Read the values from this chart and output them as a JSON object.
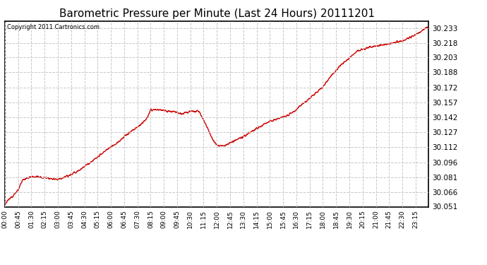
{
  "title": "Barometric Pressure per Minute (Last 24 Hours) 20111201",
  "copyright": "Copyright 2011 Cartronics.com",
  "line_color": "#cc0000",
  "background_color": "#ffffff",
  "grid_color": "#c8c8c8",
  "title_fontsize": 11,
  "ylabel_values": [
    30.051,
    30.066,
    30.081,
    30.096,
    30.112,
    30.127,
    30.142,
    30.157,
    30.172,
    30.188,
    30.203,
    30.218,
    30.233
  ],
  "ylim": [
    30.051,
    30.24
  ],
  "x_tick_labels": [
    "00:00",
    "00:45",
    "01:30",
    "02:15",
    "03:00",
    "03:45",
    "04:30",
    "05:15",
    "06:00",
    "06:45",
    "07:30",
    "08:15",
    "09:00",
    "09:45",
    "10:30",
    "11:15",
    "12:00",
    "12:45",
    "13:30",
    "14:15",
    "15:00",
    "15:45",
    "16:30",
    "17:15",
    "18:00",
    "18:45",
    "19:30",
    "20:15",
    "21:00",
    "21:45",
    "22:30",
    "23:15"
  ],
  "line_width": 1.0,
  "ctrl_x": [
    0,
    45,
    60,
    90,
    120,
    150,
    180,
    210,
    240,
    270,
    300,
    330,
    360,
    390,
    420,
    450,
    480,
    495,
    510,
    540,
    570,
    600,
    630,
    660,
    690,
    705,
    720,
    735,
    750,
    780,
    810,
    840,
    870,
    900,
    930,
    960,
    990,
    1020,
    1050,
    1080,
    1110,
    1140,
    1170,
    1200,
    1230,
    1260,
    1290,
    1320,
    1350,
    1380,
    1410,
    1439
  ],
  "ctrl_y": [
    30.054,
    30.068,
    30.078,
    30.082,
    30.081,
    30.08,
    30.079,
    30.082,
    30.086,
    30.092,
    30.098,
    30.105,
    30.112,
    30.118,
    30.126,
    30.132,
    30.14,
    30.149,
    30.15,
    30.149,
    30.148,
    30.146,
    30.148,
    30.148,
    30.13,
    30.12,
    30.113,
    30.113,
    30.114,
    30.118,
    30.122,
    30.128,
    30.133,
    30.138,
    30.141,
    30.144,
    30.15,
    30.158,
    30.165,
    30.173,
    30.185,
    30.195,
    30.203,
    30.21,
    30.213,
    30.215,
    30.216,
    30.218,
    30.22,
    30.224,
    30.229,
    30.235
  ]
}
